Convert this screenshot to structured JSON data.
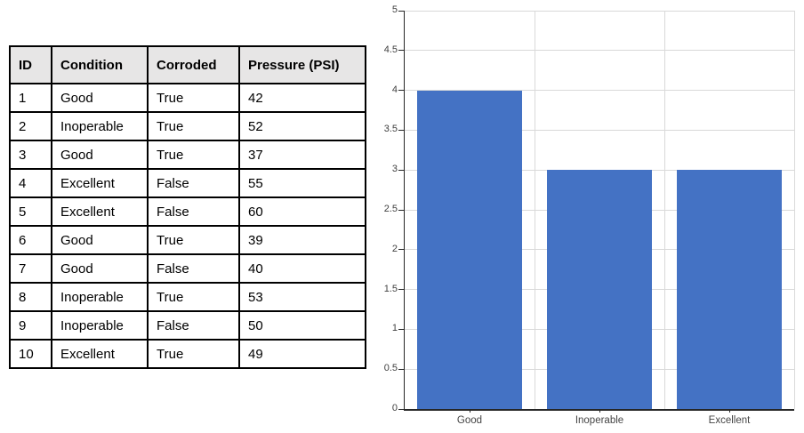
{
  "table": {
    "headers": [
      "ID",
      "Condition",
      "Corroded",
      "Pressure (PSI)"
    ],
    "rows": [
      [
        "1",
        "Good",
        "True",
        "42"
      ],
      [
        "2",
        "Inoperable",
        "True",
        "52"
      ],
      [
        "3",
        "Good",
        "True",
        "37"
      ],
      [
        "4",
        "Excellent",
        "False",
        "55"
      ],
      [
        "5",
        "Excellent",
        "False",
        "60"
      ],
      [
        "6",
        "Good",
        "True",
        "39"
      ],
      [
        "7",
        "Good",
        "False",
        "40"
      ],
      [
        "8",
        "Inoperable",
        "True",
        "53"
      ],
      [
        "9",
        "Inoperable",
        "False",
        "50"
      ],
      [
        "10",
        "Excellent",
        "True",
        "49"
      ]
    ],
    "header_bg": "#E7E6E6",
    "border_color": "#000000"
  },
  "chart_data": {
    "type": "bar",
    "title": "",
    "xlabel": "",
    "ylabel": "",
    "categories": [
      "Good",
      "Inoperable",
      "Excellent"
    ],
    "values": [
      4,
      3,
      3
    ],
    "ylim": [
      0,
      5
    ],
    "ytick_step": 0.5,
    "ytick_labels": [
      "0",
      "0.5",
      "1",
      "1.5",
      "2",
      "2.5",
      "3",
      "3.5",
      "4",
      "4.5",
      "5"
    ],
    "grid": true,
    "legend": false,
    "bar_color": "#4472C4",
    "grid_color": "#D9D9D9",
    "axis_color": "#262626",
    "label_color": "#404040"
  }
}
